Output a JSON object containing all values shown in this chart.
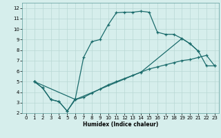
{
  "title": "",
  "xlabel": "Humidex (Indice chaleur)",
  "xlim": [
    -0.5,
    23.5
  ],
  "ylim": [
    2,
    12.5
  ],
  "xticks": [
    0,
    1,
    2,
    3,
    4,
    5,
    6,
    7,
    8,
    9,
    10,
    11,
    12,
    13,
    14,
    15,
    16,
    17,
    18,
    19,
    20,
    21,
    22,
    23
  ],
  "yticks": [
    2,
    3,
    4,
    5,
    6,
    7,
    8,
    9,
    10,
    11,
    12
  ],
  "bg_color": "#d6eeec",
  "grid_color": "#b8d8d4",
  "line_color": "#1a6b6b",
  "line1_x": [
    1,
    2,
    3,
    4,
    5,
    6,
    7,
    8,
    9,
    10,
    11,
    12,
    13,
    14,
    15,
    16,
    17,
    18,
    19,
    20,
    21
  ],
  "line1_y": [
    5.0,
    4.4,
    3.3,
    3.1,
    2.2,
    3.4,
    7.3,
    8.8,
    9.0,
    10.4,
    11.55,
    11.6,
    11.6,
    11.7,
    11.6,
    9.7,
    9.5,
    9.5,
    9.1,
    8.6,
    7.9
  ],
  "line2_x": [
    1,
    2,
    3,
    4,
    5,
    6,
    7,
    8,
    9,
    10,
    11,
    12,
    13,
    14,
    15,
    16,
    17,
    18,
    19,
    20,
    21,
    22,
    23
  ],
  "line2_y": [
    5.0,
    4.4,
    3.3,
    3.1,
    2.2,
    3.3,
    3.5,
    3.9,
    4.3,
    4.7,
    5.0,
    5.3,
    5.6,
    5.9,
    6.2,
    6.4,
    6.6,
    6.8,
    7.0,
    7.1,
    7.3,
    7.5,
    6.5
  ],
  "line3_x": [
    1,
    6,
    14,
    19,
    20,
    21,
    22,
    23
  ],
  "line3_y": [
    5.0,
    3.3,
    5.9,
    9.1,
    8.6,
    7.9,
    6.5,
    6.5
  ]
}
